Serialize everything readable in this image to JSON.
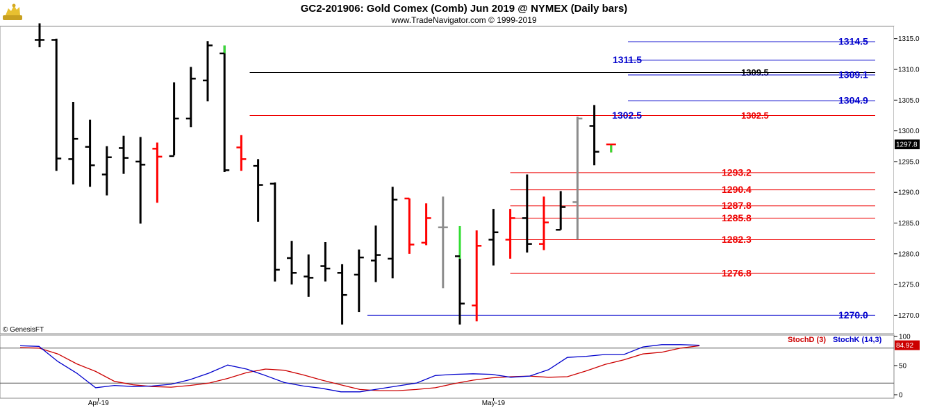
{
  "header": {
    "title": "GC2-201906:  Gold Comex (Comb) Jun 2019 @ NYMEX  (Daily bars)",
    "subtitle": "www.TradeNavigator.com © 1999-2019",
    "logo_icon": "gold-bull-icon"
  },
  "copyright": "© GenesisFT",
  "colors": {
    "up": "#000000",
    "down": "#ff0000",
    "gray": "#8c8c8c",
    "green": "#33dd33",
    "resistance": "#0000cc",
    "support": "#ee0000",
    "stoch_d": "#cc0000",
    "stoch_k": "#0000cc"
  },
  "chart_data": [
    {
      "type": "ohlc",
      "ylim": [
        1267,
        1317
      ],
      "y_ticks": [
        "1270.0",
        "1275.0",
        "1280.0",
        "1285.0",
        "1290.0",
        "1295.0",
        "1300.0",
        "1305.0",
        "1310.0",
        "1315.0"
      ],
      "x_labels": [
        {
          "label": "Apr-19",
          "bar": 3.5
        },
        {
          "label": "May-19",
          "bar": 27
        }
      ],
      "last_price": "1297.8",
      "bars": [
        {
          "o": 1314.8,
          "h": 1317.5,
          "l": 1313.6,
          "c": 1314.8,
          "color": "up"
        },
        {
          "o": 1314.8,
          "h": 1315.0,
          "l": 1293.5,
          "c": 1295.5,
          "color": "up"
        },
        {
          "o": 1295.4,
          "h": 1304.7,
          "l": 1291.3,
          "c": 1298.7,
          "color": "up"
        },
        {
          "o": 1297.4,
          "h": 1301.8,
          "l": 1290.9,
          "c": 1294.4,
          "color": "up"
        },
        {
          "o": 1292.9,
          "h": 1297.5,
          "l": 1289.5,
          "c": 1295.7,
          "color": "up"
        },
        {
          "o": 1297.2,
          "h": 1299.2,
          "l": 1293.0,
          "c": 1295.6,
          "color": "up"
        },
        {
          "o": 1295.0,
          "h": 1299.0,
          "l": 1284.9,
          "c": 1294.5,
          "color": "up"
        },
        {
          "o": 1297.1,
          "h": 1298.1,
          "l": 1288.3,
          "c": 1295.8,
          "color": "down"
        },
        {
          "o": 1295.9,
          "h": 1307.9,
          "l": 1296.0,
          "c": 1302.0,
          "color": "up"
        },
        {
          "o": 1302.0,
          "h": 1310.4,
          "l": 1300.6,
          "c": 1308.5,
          "color": "up"
        },
        {
          "o": 1308.2,
          "h": 1314.6,
          "l": 1304.8,
          "c": 1313.9,
          "color": "up"
        },
        {
          "o": 1312.6,
          "h": 1313.9,
          "l": 1293.3,
          "c": 1293.6,
          "color": "up",
          "top_color": "green",
          "top_from": 1312.6
        },
        {
          "o": 1297.3,
          "h": 1299.3,
          "l": 1293.5,
          "c": 1295.4,
          "color": "down"
        },
        {
          "o": 1294.3,
          "h": 1295.4,
          "l": 1285.2,
          "c": 1291.2,
          "color": "up"
        },
        {
          "o": 1291.4,
          "h": 1291.6,
          "l": 1275.5,
          "c": 1277.4,
          "color": "up"
        },
        {
          "o": 1279.3,
          "h": 1282.1,
          "l": 1275.0,
          "c": 1276.9,
          "color": "up"
        },
        {
          "o": 1276.3,
          "h": 1279.9,
          "l": 1273.0,
          "c": 1276.1,
          "color": "up"
        },
        {
          "o": 1278.0,
          "h": 1281.9,
          "l": 1275.5,
          "c": 1277.6,
          "color": "up"
        },
        {
          "o": 1276.9,
          "h": 1278.3,
          "l": 1268.5,
          "c": 1273.3,
          "color": "up"
        },
        {
          "o": 1276.6,
          "h": 1280.7,
          "l": 1270.5,
          "c": 1279.4,
          "color": "up"
        },
        {
          "o": 1278.9,
          "h": 1284.6,
          "l": 1275.4,
          "c": 1279.8,
          "color": "up"
        },
        {
          "o": 1279.2,
          "h": 1290.9,
          "l": 1276.0,
          "c": 1288.8,
          "color": "up"
        },
        {
          "o": 1289.0,
          "h": 1289.0,
          "l": 1280.0,
          "c": 1281.5,
          "color": "down"
        },
        {
          "o": 1281.8,
          "h": 1288.2,
          "l": 1281.4,
          "c": 1285.8,
          "color": "down"
        },
        {
          "o": 1284.3,
          "h": 1289.3,
          "l": 1274.4,
          "c": 1284.3,
          "color": "gray"
        },
        {
          "o": 1279.6,
          "h": 1284.5,
          "l": 1268.5,
          "c": 1271.9,
          "color": "up",
          "top_color": "green",
          "top_from": 1279.2
        },
        {
          "o": 1271.6,
          "h": 1283.8,
          "l": 1269.0,
          "c": 1281.3,
          "color": "down"
        },
        {
          "o": 1282.3,
          "h": 1287.3,
          "l": 1278.1,
          "c": 1283.5,
          "color": "up"
        },
        {
          "o": 1282.3,
          "h": 1287.3,
          "l": 1279.2,
          "c": 1285.8,
          "color": "down"
        },
        {
          "o": 1285.8,
          "h": 1292.9,
          "l": 1280.2,
          "c": 1281.6,
          "color": "up"
        },
        {
          "o": 1281.6,
          "h": 1289.3,
          "l": 1280.6,
          "c": 1285.1,
          "color": "down"
        },
        {
          "o": 1283.9,
          "h": 1290.2,
          "l": 1283.9,
          "c": 1287.6,
          "color": "up"
        },
        {
          "o": 1288.4,
          "h": 1302.3,
          "l": 1282.3,
          "c": 1302.0,
          "color": "gray"
        },
        {
          "o": 1300.8,
          "h": 1304.2,
          "l": 1294.4,
          "c": 1296.6,
          "color": "up"
        },
        {
          "o": 1297.8,
          "h": 1297.8,
          "l": 1296.5,
          "c": 1297.8,
          "color": "down",
          "bottom_color": "green"
        }
      ],
      "levels": [
        {
          "value": 1314.5,
          "label": "1314.5",
          "color": "resistance",
          "from_bar": 35,
          "label_pos": "right"
        },
        {
          "value": 1311.5,
          "label": "1311.5",
          "color": "resistance",
          "from_bar": 35,
          "label_pos": "left"
        },
        {
          "value": 1309.5,
          "label": "1309.5",
          "color": "black",
          "from_bar": 12.5,
          "label_pos": "mid"
        },
        {
          "value": 1309.1,
          "label": "1309.1",
          "color": "resistance",
          "from_bar": 35,
          "label_pos": "right"
        },
        {
          "value": 1304.9,
          "label": "1304.9",
          "color": "resistance",
          "from_bar": 35,
          "label_pos": "right"
        },
        {
          "value": 1302.5,
          "label": "1302.5",
          "color": "support",
          "from_bar": 12.5,
          "label_pos": "mid"
        },
        {
          "value": 1302.5,
          "label": "1302.5",
          "color": "resistance",
          "label_pos": "left-only"
        },
        {
          "value": 1293.2,
          "label": "1293.2",
          "color": "support",
          "from_bar": 28,
          "label_pos": "near"
        },
        {
          "value": 1290.4,
          "label": "1290.4",
          "color": "support",
          "from_bar": 28,
          "label_pos": "near"
        },
        {
          "value": 1287.8,
          "label": "1287.8",
          "color": "support",
          "from_bar": 28,
          "label_pos": "near"
        },
        {
          "value": 1285.8,
          "label": "1285.8",
          "color": "support",
          "from_bar": 28,
          "label_pos": "near"
        },
        {
          "value": 1282.3,
          "label": "1282.3",
          "color": "support",
          "from_bar": 28,
          "label_pos": "near"
        },
        {
          "value": 1276.8,
          "label": "1276.8",
          "color": "support",
          "from_bar": 28,
          "label_pos": "near"
        },
        {
          "value": 1270.0,
          "label": "1270.0",
          "color": "resistance",
          "from_bar": 19.5,
          "label_pos": "right"
        }
      ]
    },
    {
      "type": "line",
      "ylim": [
        0,
        100
      ],
      "y_ticks": [
        "0",
        "50",
        "100"
      ],
      "reference_lines": [
        20,
        80
      ],
      "last_value": "84.92",
      "series": [
        {
          "name": "StochD (3)",
          "color": "stoch_d",
          "values": [
            81,
            80,
            70,
            53,
            40,
            23,
            17,
            14,
            13,
            16,
            20,
            28,
            38,
            44,
            42,
            34,
            25,
            17,
            9,
            7,
            7,
            9,
            12,
            19,
            25,
            29,
            31,
            32,
            30,
            31,
            41,
            52,
            60,
            70,
            73,
            80,
            84
          ]
        },
        {
          "name": "StochK (14,3)",
          "color": "stoch_k",
          "values": [
            84,
            83,
            57,
            37,
            12,
            16,
            14,
            15,
            18,
            26,
            37,
            51,
            44,
            33,
            21,
            15,
            11,
            5,
            5,
            10,
            15,
            20,
            33,
            35,
            36,
            35,
            30,
            32,
            43,
            64,
            66,
            69,
            69,
            82,
            86,
            86,
            85
          ]
        }
      ]
    }
  ]
}
